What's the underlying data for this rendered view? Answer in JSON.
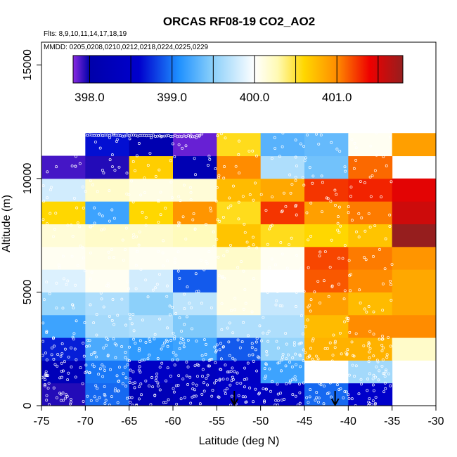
{
  "chart_data": {
    "type": "heatmap",
    "title": "ORCAS RF08-19 CO2_AO2",
    "subtitle_flights": "Flts: 8,9,10,11,14,17,18,19",
    "subtitle_dates": "MMDD: 0205,0208,0210,0212,0218,0224,0225,0229",
    "xlabel": "Latitude (deg N)",
    "ylabel": "Altitude (m)",
    "xlim": [
      -75,
      -30
    ],
    "ylim": [
      0,
      16000
    ],
    "x_ticks": [
      -75,
      -70,
      -65,
      -60,
      -55,
      -50,
      -45,
      -40,
      -35,
      -30
    ],
    "y_ticks": [
      0,
      5000,
      10000,
      15000
    ],
    "x_tick_labels": [
      "-75",
      "-70",
      "-65",
      "-60",
      "-55",
      "-50",
      "-45",
      "-40",
      "-35",
      "-30"
    ],
    "y_tick_labels": [
      "0",
      "5000",
      "10000",
      "15000"
    ],
    "lat_bin_edges": [
      -75,
      -70,
      -65,
      -60,
      -55,
      -50,
      -45,
      -40,
      -35,
      -30
    ],
    "alt_bin_edges": [
      0,
      1000,
      2000,
      3000,
      4000,
      5000,
      6000,
      7000,
      8000,
      9000,
      10000,
      11000,
      12000
    ],
    "colorbar": {
      "range": [
        397.8,
        401.8
      ],
      "tick_values": [
        398.0,
        399.0,
        400.0,
        401.0
      ],
      "tick_labels": [
        "398.0",
        "399.0",
        "400.0",
        "401.0"
      ],
      "divider_values": [
        398.0,
        398.5,
        399.0,
        399.5,
        400.0,
        400.5,
        401.0,
        401.5
      ]
    },
    "values": [
      [
        397.95,
        398.95,
        398.2,
        398.3,
        398.5,
        398.4,
        398.95,
        398.55,
        null
      ],
      [
        398.25,
        399.0,
        398.45,
        398.35,
        398.45,
        399.2,
        400.0,
        399.6,
        null
      ],
      [
        398.7,
        399.25,
        399.15,
        399.2,
        398.9,
        399.55,
        400.8,
        400.8,
        400.2
      ],
      [
        399.2,
        399.6,
        399.65,
        399.45,
        399.65,
        399.65,
        400.75,
        401.0,
        401.0
      ],
      [
        399.55,
        399.65,
        399.5,
        399.7,
        400.1,
        399.75,
        400.9,
        400.75,
        400.85
      ],
      [
        399.85,
        400.05,
        399.8,
        398.9,
        400.1,
        400.0,
        401.15,
        401.0,
        400.85
      ],
      [
        400.05,
        400.1,
        400.05,
        400.05,
        400.2,
        400.05,
        401.2,
        401.05,
        400.95
      ],
      [
        400.15,
        400.2,
        400.2,
        400.25,
        400.7,
        400.55,
        400.6,
        400.7,
        401.8
      ],
      [
        400.6,
        399.2,
        400.6,
        400.95,
        400.55,
        401.25,
        400.9,
        401.05,
        401.55
      ],
      [
        399.8,
        400.2,
        400.1,
        400.15,
        400.75,
        400.85,
        401.25,
        401.3,
        401.45
      ],
      [
        397.9,
        397.95,
        400.65,
        398.15,
        401.0,
        399.65,
        399.4,
        401.1,
        null
      ],
      [
        null,
        398.65,
        398.1,
        397.85,
        400.55,
        399.3,
        399.35,
        400.05,
        400.9
      ]
    ],
    "annotations": [
      {
        "type": "arrow-down",
        "latitude": -53
      },
      {
        "type": "arrow-down",
        "latitude": -41.5
      }
    ],
    "grid": false
  }
}
